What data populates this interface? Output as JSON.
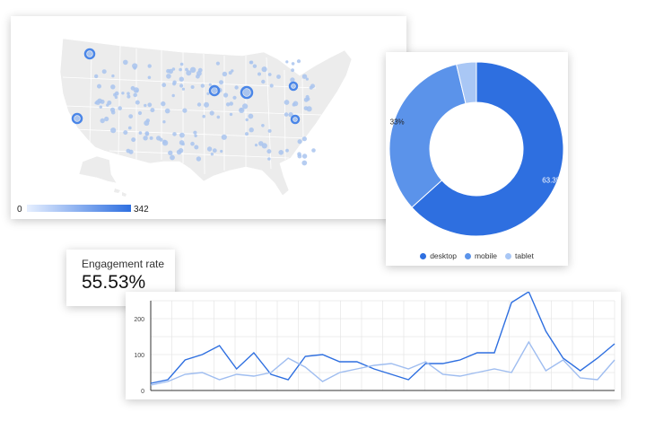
{
  "map": {
    "legend_min": "0",
    "legend_max": "342",
    "colors": {
      "land": "#ececec",
      "border": "#ffffff",
      "dot": "#a9c4ef",
      "dot_dark": "#4a86e8"
    }
  },
  "donut": {
    "slices": [
      {
        "name": "desktop",
        "value": 63.3,
        "label": "63.3%",
        "color": "#2e6fe0"
      },
      {
        "name": "mobile",
        "value": 33.0,
        "label": "33%",
        "color": "#5b93ea"
      },
      {
        "name": "tablet",
        "value": 3.7,
        "label": "",
        "color": "#a9c7f5"
      }
    ]
  },
  "kpi": {
    "title": "Engagement rate",
    "value": "55.53%"
  },
  "chart_data": {
    "type": "line",
    "x": [
      1,
      2,
      3,
      4,
      5,
      6,
      7,
      8,
      9,
      10,
      11,
      12,
      13,
      14,
      15,
      16,
      17,
      18,
      19,
      20,
      21,
      22,
      23,
      24,
      25,
      26,
      27,
      28
    ],
    "ylim": [
      0,
      250
    ],
    "yticks": [
      "0",
      "100",
      "200"
    ],
    "series": [
      {
        "color": "#2e6fe0",
        "values": [
          20,
          30,
          85,
          100,
          125,
          60,
          105,
          45,
          30,
          95,
          100,
          80,
          80,
          60,
          45,
          30,
          75,
          75,
          85,
          105,
          105,
          245,
          275,
          165,
          90,
          55,
          90,
          130
        ]
      },
      {
        "color": "#9fbdf0",
        "values": [
          15,
          25,
          45,
          50,
          30,
          45,
          40,
          50,
          90,
          65,
          25,
          50,
          60,
          70,
          75,
          60,
          80,
          45,
          40,
          50,
          60,
          50,
          135,
          55,
          85,
          35,
          30,
          85
        ]
      }
    ]
  }
}
